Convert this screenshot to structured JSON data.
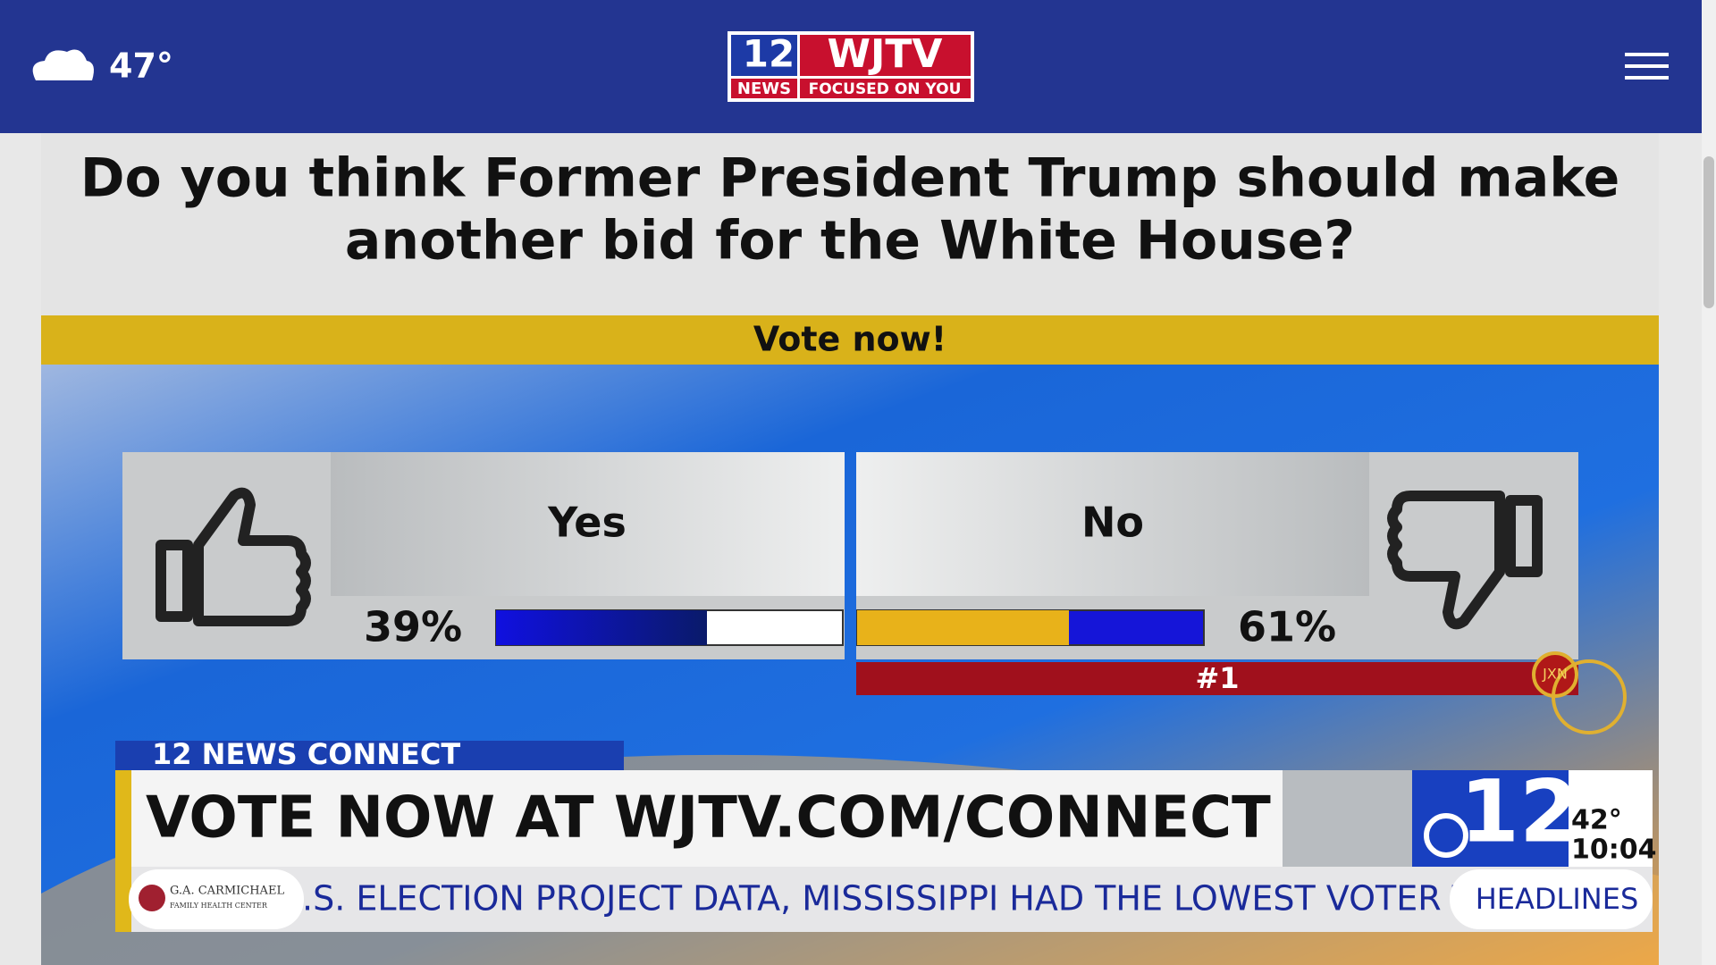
{
  "header": {
    "weather_temp": "47°",
    "logo_number": "12",
    "logo_name": "WJTV",
    "logo_news": "NEWS",
    "logo_tagline": "FOCUSED ON YOU"
  },
  "poll": {
    "question_line1": "Do you think Former President Trump should make",
    "question_line2": "another bid for the White House?",
    "cta": "Vote now!",
    "options": [
      {
        "label": "Yes",
        "percent": "39%"
      },
      {
        "label": "No",
        "percent": "61%",
        "rank": "#1"
      }
    ]
  },
  "broadcast": {
    "bug_title": "12 NEWS CONNECT",
    "headline": "VOTE NOW AT WJTV.COM/CONNECT",
    "channel": "12",
    "temp": "42°",
    "time": "10:04",
    "sponsor": "G.A. CARMICHAEL",
    "sponsor_sub": "FAMILY HEALTH CENTER",
    "ticker": ".S. ELECTION PROJECT DATA, MISSISSIPPI HAD THE LOWEST VOTER T",
    "ticker_label": "HEADLINES",
    "watermark": "JXN"
  }
}
